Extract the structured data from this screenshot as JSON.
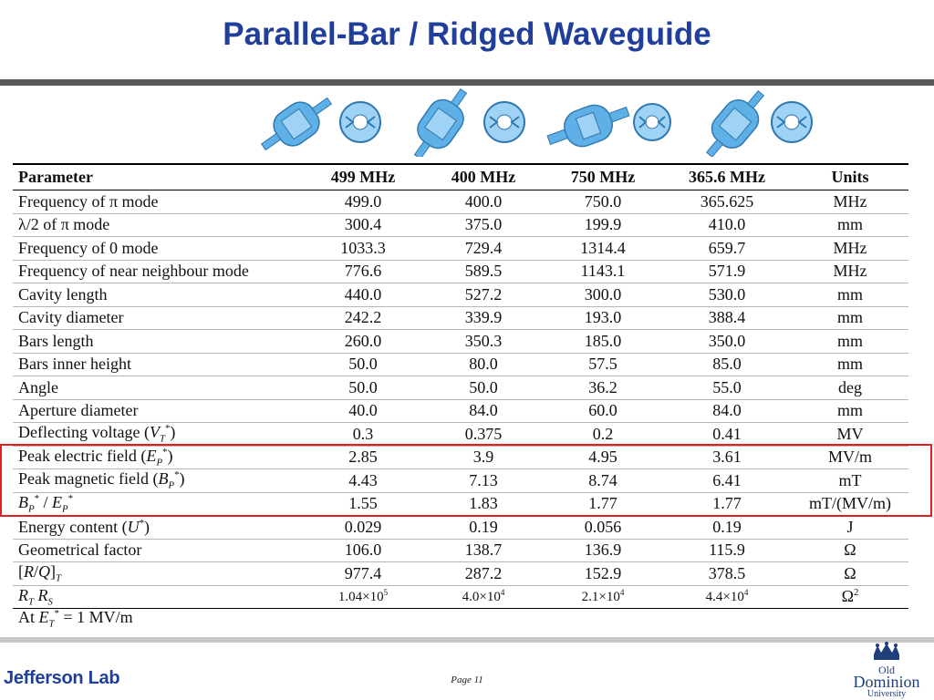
{
  "slide": {
    "title": "Parallel-Bar / Ridged Waveguide",
    "page": "Page 11",
    "logo_left": "Jefferson Lab",
    "logo_right_line1": "Old",
    "logo_right_line2": "Dominion",
    "logo_right_line3": "University"
  },
  "colors": {
    "title": "#1f3f9b",
    "highlight": "#e02020",
    "cavity_fill": "#5fb0e6",
    "rule": "#5a5a5a"
  },
  "table": {
    "headers": [
      "Parameter",
      "499 MHz",
      "400 MHz",
      "750 MHz",
      "365.6 MHz",
      "Units"
    ],
    "rows": [
      {
        "param": "Frequency of π mode",
        "v": [
          "499.0",
          "400.0",
          "750.0",
          "365.625"
        ],
        "unit": "MHz"
      },
      {
        "param": "λ/2 of π mode",
        "v": [
          "300.4",
          "375.0",
          "199.9",
          "410.0"
        ],
        "unit": "mm"
      },
      {
        "param": "Frequency of 0 mode",
        "v": [
          "1033.3",
          "729.4",
          "1314.4",
          "659.7"
        ],
        "unit": "MHz"
      },
      {
        "param": "Frequency of near neighbour mode",
        "v": [
          "776.6",
          "589.5",
          "1143.1",
          "571.9"
        ],
        "unit": "MHz"
      },
      {
        "param": "Cavity length",
        "v": [
          "440.0",
          "527.2",
          "300.0",
          "530.0"
        ],
        "unit": "mm"
      },
      {
        "param": "Cavity diameter",
        "v": [
          "242.2",
          "339.9",
          "193.0",
          "388.4"
        ],
        "unit": "mm"
      },
      {
        "param": "Bars length",
        "v": [
          "260.0",
          "350.3",
          "185.0",
          "350.0"
        ],
        "unit": "mm"
      },
      {
        "param": "Bars inner height",
        "v": [
          "50.0",
          "80.0",
          "57.5",
          "85.0"
        ],
        "unit": "mm"
      },
      {
        "param": "Angle",
        "v": [
          "50.0",
          "50.0",
          "36.2",
          "55.0"
        ],
        "unit": "deg"
      },
      {
        "param": "Aperture diameter",
        "v": [
          "40.0",
          "84.0",
          "60.0",
          "84.0"
        ],
        "unit": "mm"
      },
      {
        "param": "Deflecting voltage (V_T*)",
        "v": [
          "0.3",
          "0.375",
          "0.2",
          "0.41"
        ],
        "unit": "MV"
      },
      {
        "param": "Peak electric field (E_P*)",
        "v": [
          "2.85",
          "3.9",
          "4.95",
          "3.61"
        ],
        "unit": "MV/m"
      },
      {
        "param": "Peak magnetic field (B_P*)",
        "v": [
          "4.43",
          "7.13",
          "8.74",
          "6.41"
        ],
        "unit": "mT"
      },
      {
        "param": "B_P* / E_P*",
        "v": [
          "1.55",
          "1.83",
          "1.77",
          "1.77"
        ],
        "unit": "mT/(MV/m)"
      },
      {
        "param": "Energy content (U*)",
        "v": [
          "0.029",
          "0.19",
          "0.056",
          "0.19"
        ],
        "unit": "J"
      },
      {
        "param": "Geometrical factor",
        "v": [
          "106.0",
          "138.7",
          "136.9",
          "115.9"
        ],
        "unit": "Ω"
      },
      {
        "param": "[R/Q]_T",
        "v": [
          "977.4",
          "287.2",
          "152.9",
          "378.5"
        ],
        "unit": "Ω"
      },
      {
        "param": "R_T R_S",
        "v": [
          "1.04×10^5",
          "4.0×10^4",
          "2.1×10^4",
          "4.4×10^4"
        ],
        "unit": "Ω^2"
      }
    ],
    "footnote": "At E_T* = 1 MV/m"
  },
  "icons": [
    "cavity-3d-icon",
    "cavity-cross-section-icon",
    "jefferson-lab-logo",
    "odu-crown-logo"
  ]
}
